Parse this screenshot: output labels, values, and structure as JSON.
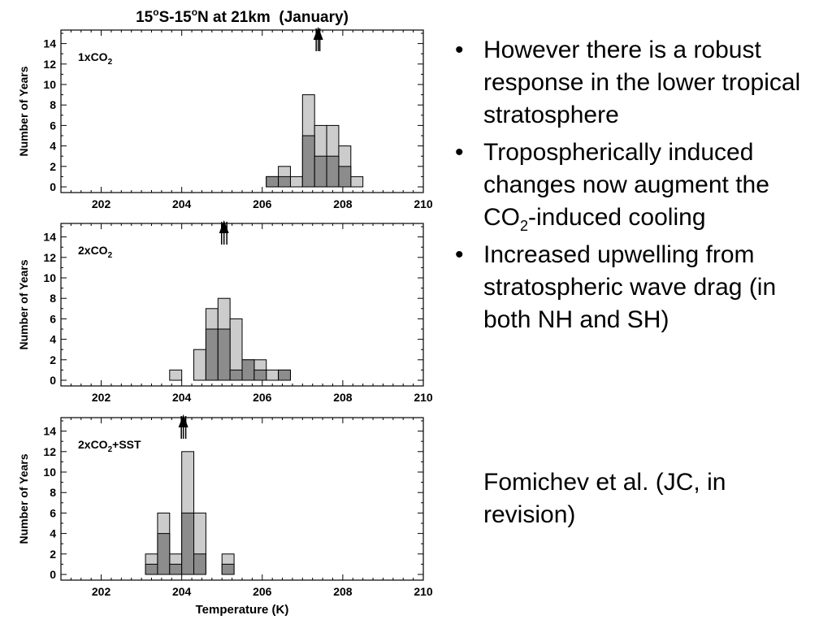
{
  "slide": {
    "bullets": [
      {
        "text": "However there is a robust response in the lower tropical stratosphere"
      },
      {
        "pre": "Tropospherically induced changes now augment the CO",
        "sub": "2",
        "post": "-induced cooling"
      },
      {
        "text": "Increased upwelling from stratospheric wave drag (in both NH and SH)"
      }
    ],
    "citation": "Fomichev et al. (JC, in revision)"
  },
  "figure": {
    "title_a": "15",
    "title_deg1": "o",
    "title_b": "S-15",
    "title_deg2": "o",
    "title_c": "N at 21km  (January)"
  },
  "chart_data": [
    {
      "type": "bar",
      "panel_label": {
        "pre": "1xCO",
        "sub": "2",
        "post": ""
      },
      "ylabel": "Number of Years",
      "xlabel": "",
      "xlim": [
        201,
        210
      ],
      "ylim": [
        0,
        15
      ],
      "x_ticks": [
        202,
        204,
        206,
        208,
        210
      ],
      "y_ticks": [
        0,
        2,
        4,
        6,
        8,
        10,
        12,
        14
      ],
      "bin_width": 0.3,
      "series": [
        {
          "color": "#cccccc",
          "bins": [
            [
              206.1,
              1
            ],
            [
              206.4,
              2
            ],
            [
              206.7,
              1
            ],
            [
              207.0,
              9
            ],
            [
              207.3,
              6
            ],
            [
              207.6,
              6
            ],
            [
              207.9,
              4
            ],
            [
              208.2,
              1
            ]
          ]
        },
        {
          "color": "#8c8c8c",
          "bins": [
            [
              206.1,
              1
            ],
            [
              206.4,
              1
            ],
            [
              207.0,
              5
            ],
            [
              207.3,
              3
            ],
            [
              207.6,
              3
            ],
            [
              207.9,
              2
            ]
          ]
        }
      ],
      "arrows_x": [
        207.34,
        207.39,
        207.43
      ]
    },
    {
      "type": "bar",
      "panel_label": {
        "pre": "2xCO",
        "sub": "2",
        "post": ""
      },
      "ylabel": "Number of Years",
      "xlabel": "",
      "xlim": [
        201,
        210
      ],
      "ylim": [
        0,
        15
      ],
      "x_ticks": [
        202,
        204,
        206,
        208,
        210
      ],
      "y_ticks": [
        0,
        2,
        4,
        6,
        8,
        10,
        12,
        14
      ],
      "bin_width": 0.3,
      "series": [
        {
          "color": "#cccccc",
          "bins": [
            [
              203.7,
              1
            ],
            [
              204.3,
              3
            ],
            [
              204.6,
              7
            ],
            [
              204.9,
              8
            ],
            [
              205.2,
              6
            ],
            [
              205.5,
              2
            ],
            [
              205.8,
              2
            ],
            [
              206.1,
              1
            ],
            [
              206.4,
              1
            ]
          ]
        },
        {
          "color": "#8c8c8c",
          "bins": [
            [
              204.6,
              5
            ],
            [
              204.9,
              5
            ],
            [
              205.2,
              1
            ],
            [
              205.5,
              2
            ],
            [
              205.8,
              1
            ],
            [
              206.4,
              1
            ]
          ]
        }
      ],
      "arrows_x": [
        204.99,
        205.05,
        205.12
      ]
    },
    {
      "type": "bar",
      "panel_label": {
        "pre": "2xCO",
        "sub": "2",
        "post": "+SST"
      },
      "ylabel": "Number of Years",
      "xlabel": "Temperature (K)",
      "xlim": [
        201,
        210
      ],
      "ylim": [
        0,
        15
      ],
      "x_ticks": [
        202,
        204,
        206,
        208,
        210
      ],
      "y_ticks": [
        0,
        2,
        4,
        6,
        8,
        10,
        12,
        14
      ],
      "bin_width": 0.3,
      "series": [
        {
          "color": "#cccccc",
          "bins": [
            [
              203.1,
              2
            ],
            [
              203.4,
              6
            ],
            [
              203.7,
              2
            ],
            [
              204.0,
              12
            ],
            [
              204.3,
              6
            ],
            [
              205.0,
              2
            ]
          ]
        },
        {
          "color": "#8c8c8c",
          "bins": [
            [
              203.1,
              1
            ],
            [
              203.4,
              4
            ],
            [
              203.7,
              1
            ],
            [
              204.0,
              6
            ],
            [
              204.3,
              2
            ],
            [
              205.0,
              1
            ]
          ]
        }
      ],
      "arrows_x": [
        203.99,
        204.04,
        204.1
      ]
    }
  ]
}
